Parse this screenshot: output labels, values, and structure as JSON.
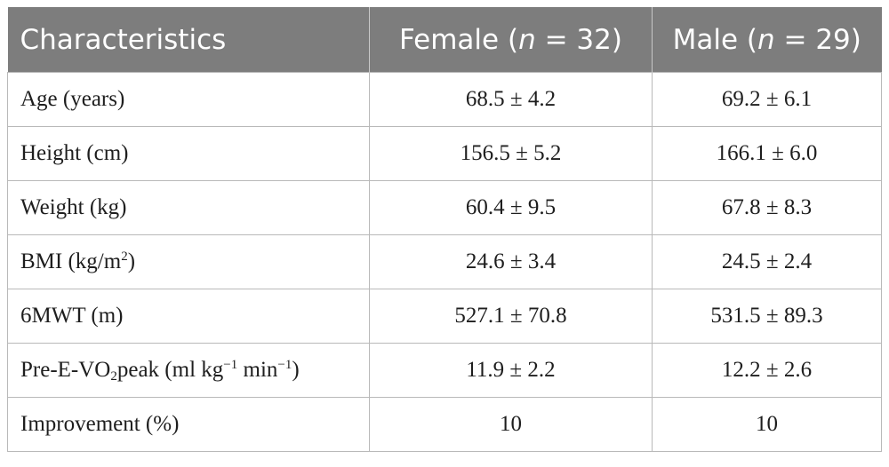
{
  "table": {
    "headers": {
      "characteristics": "Characteristics",
      "female_prefix": "Female (",
      "female_n": "n",
      "female_suffix": " = 32)",
      "male_prefix": "Male (",
      "male_n": "n",
      "male_suffix": " = 29)"
    },
    "rows": [
      {
        "label": "Age (years)",
        "female": "68.5 ± 4.2",
        "male": "69.2 ± 6.1"
      },
      {
        "label": "Height (cm)",
        "female": "156.5 ± 5.2",
        "male": "166.1 ± 6.0"
      },
      {
        "label": "Weight (kg)",
        "female": "60.4 ± 9.5",
        "male": "67.8 ± 8.3"
      },
      {
        "label_main": "BMI (kg/m",
        "label_sup": "2",
        "label_end": ")",
        "female": "24.6 ± 3.4",
        "male": "24.5 ± 2.4"
      },
      {
        "label": "6MWT (m)",
        "female": "527.1 ± 70.8",
        "male": "531.5 ± 89.3"
      },
      {
        "label_a": "Pre-E-VO",
        "label_sub": "2",
        "label_b": "peak (ml kg",
        "label_sup1": "−1",
        "label_c": " min",
        "label_sup2": "−1",
        "label_d": ")",
        "female": "11.9 ± 2.2",
        "male": "12.2 ± 2.6"
      },
      {
        "label": "Improvement (%)",
        "female": "10",
        "male": "10"
      }
    ]
  }
}
